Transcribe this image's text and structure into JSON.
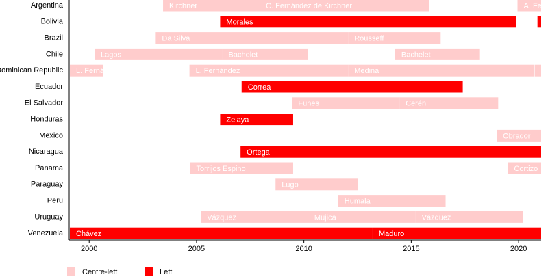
{
  "chart_data": {
    "type": "timeline",
    "series": [
      {
        "name": "Centre-left",
        "color": "#ffcccc"
      },
      {
        "name": "Left",
        "color": "#ff0000"
      }
    ],
    "xlim": [
      1999.1,
      2021.05
    ],
    "xticks": [
      2000,
      2005,
      2010,
      2015,
      2020
    ],
    "rows": [
      {
        "name": "Argentina",
        "terms": [
          {
            "label": "Kirchner",
            "start": 2003.44,
            "end": 2007.94,
            "leaning": "Centre-left"
          },
          {
            "label": "C. Fernández de Kirchner",
            "start": 2007.94,
            "end": 2015.82,
            "leaning": "Centre-left"
          },
          {
            "label": "A. Fe",
            "start": 2019.95,
            "end": 2021.05,
            "leaning": "Centre-left"
          }
        ]
      },
      {
        "name": "Bolivia",
        "terms": [
          {
            "label": "Morales",
            "start": 2006.1,
            "end": 2019.87,
            "leaning": "Left"
          },
          {
            "start": 2020.88,
            "end": 2021.05,
            "leaning": "Left"
          }
        ]
      },
      {
        "name": "Brazil",
        "terms": [
          {
            "label": "Da Silva",
            "start": 2003.1,
            "end": 2012.06,
            "leaning": "Centre-left"
          },
          {
            "label": "Rousseff",
            "start": 2012.06,
            "end": 2016.37,
            "leaning": "Centre-left"
          }
        ]
      },
      {
        "name": "Chile",
        "terms": [
          {
            "label": "Lagos",
            "start": 2000.25,
            "end": 2006.2,
            "leaning": "Centre-left"
          },
          {
            "label": "Bachelet",
            "start": 2006.2,
            "end": 2010.2,
            "leaning": "Centre-left"
          },
          {
            "label": "Bachelet",
            "start": 2014.25,
            "end": 2018.2,
            "leaning": "Centre-left"
          }
        ]
      },
      {
        "name": "Dominican Republic",
        "terms": [
          {
            "label": "L. Fernán",
            "start": 1999.1,
            "end": 2000.64,
            "leaning": "Centre-left"
          },
          {
            "label": "L. Fernández",
            "start": 2004.67,
            "end": 2012.06,
            "leaning": "Centre-left"
          },
          {
            "label": "Medina",
            "start": 2012.06,
            "end": 2020.7,
            "leaning": "Centre-left"
          },
          {
            "start": 2020.75,
            "end": 2021.05,
            "leaning": "Centre-left"
          }
        ]
      },
      {
        "name": "Ecuador",
        "terms": [
          {
            "label": "Correa",
            "start": 2007.1,
            "end": 2017.4,
            "leaning": "Left"
          }
        ]
      },
      {
        "name": "El Salvador",
        "terms": [
          {
            "label": "Funes",
            "start": 2009.45,
            "end": 2014.45,
            "leaning": "Centre-left"
          },
          {
            "label": "Cerén",
            "start": 2014.45,
            "end": 2019.05,
            "leaning": "Centre-left"
          }
        ]
      },
      {
        "name": "Honduras",
        "terms": [
          {
            "label": "Zelaya",
            "start": 2006.1,
            "end": 2009.5,
            "leaning": "Left"
          }
        ]
      },
      {
        "name": "Mexico",
        "terms": [
          {
            "label": "Obrador",
            "start": 2018.98,
            "end": 2021.05,
            "leaning": "Centre-left"
          }
        ]
      },
      {
        "name": "Nicaragua",
        "terms": [
          {
            "label": "Ortega",
            "start": 2007.05,
            "end": 2021.05,
            "leaning": "Left"
          }
        ]
      },
      {
        "name": "Panama",
        "terms": [
          {
            "label": "Torrijos Espino",
            "start": 2004.7,
            "end": 2009.5,
            "leaning": "Centre-left"
          },
          {
            "label": "Cortizo",
            "start": 2019.5,
            "end": 2021.05,
            "leaning": "Centre-left"
          }
        ]
      },
      {
        "name": "Paraguay",
        "terms": [
          {
            "label": "Lugo",
            "start": 2008.68,
            "end": 2012.5,
            "leaning": "Centre-left"
          }
        ]
      },
      {
        "name": "Peru",
        "terms": [
          {
            "label": "Humala",
            "start": 2011.6,
            "end": 2016.6,
            "leaning": "Centre-left"
          }
        ]
      },
      {
        "name": "Uruguay",
        "terms": [
          {
            "label": "Vázquez",
            "start": 2005.2,
            "end": 2010.2,
            "leaning": "Centre-left"
          },
          {
            "label": "Mujica",
            "start": 2010.2,
            "end": 2015.2,
            "leaning": "Centre-left"
          },
          {
            "label": "Vázquez",
            "start": 2015.2,
            "end": 2020.2,
            "leaning": "Centre-left"
          }
        ]
      },
      {
        "name": "Venezuela",
        "terms": [
          {
            "label": "Chávez",
            "start": 1999.1,
            "end": 2013.2,
            "leaning": "Left"
          },
          {
            "label": "Maduro",
            "start": 2013.2,
            "end": 2021.05,
            "leaning": "Left"
          }
        ]
      }
    ]
  }
}
